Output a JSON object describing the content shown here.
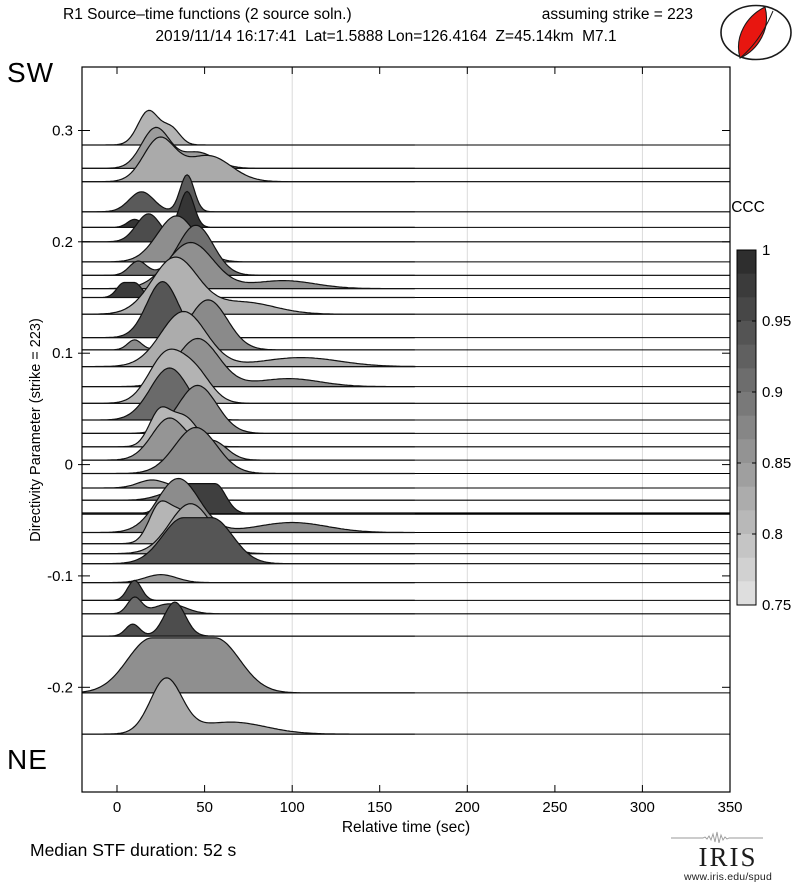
{
  "header": {
    "title_left": "R1 Source–time functions (2 source soln.)",
    "title_right": "assuming strike = 223",
    "subtitle": "2019/11/14 16:17:41  Lat=1.5888 Lon=126.4164  Z=45.14km  M7.1"
  },
  "corner_labels": {
    "top": "SW",
    "bottom": "NE"
  },
  "footer": {
    "median_text": "Median STF duration: 52 s",
    "logo_text": "IRIS",
    "logo_url": "www.iris.edu/spud"
  },
  "beachball": {
    "fill": "#e81610",
    "stroke": "#1a1a1a"
  },
  "chart_data": {
    "type": "area",
    "title": "R1 Source–time functions (2 source soln.)   assuming strike = 223",
    "subtitle": "2019/11/14 16:17:41  Lat=1.5888 Lon=126.4164  Z=45.14km  M7.1",
    "xlabel": "Relative time (sec)",
    "ylabel": "Directivity Parameter (strike = 223)",
    "xlim": [
      -20,
      350
    ],
    "ylim": [
      -0.294,
      0.357
    ],
    "x_ticks": [
      0,
      50,
      100,
      150,
      200,
      250,
      300,
      350
    ],
    "y_ticks": [
      0.3,
      0.2,
      0.1,
      0,
      -0.1,
      -0.2
    ],
    "grid_x": [
      100,
      200,
      300
    ],
    "grid_color": "#dadada",
    "median_stf_duration_sec": 52,
    "colorbar": {
      "title": "CCC",
      "tick_values": [
        1,
        0.95,
        0.9,
        0.85,
        0.8,
        0.75
      ],
      "vmin": 0.75,
      "vmax": 1,
      "bands": 15,
      "color_dark": "#2e2e2e",
      "color_light": "#dedede"
    },
    "traces": [
      {
        "d": 0.287,
        "c": "#b4b4b4",
        "k": [
          [
            18,
            6,
            34
          ],
          [
            31,
            5,
            16
          ]
        ]
      },
      {
        "d": 0.266,
        "c": "#9c9c9c",
        "k": [
          [
            22,
            8,
            40
          ],
          [
            46,
            10,
            16
          ]
        ]
      },
      {
        "d": 0.254,
        "c": "#aaaaaa",
        "k": [
          [
            24,
            9,
            42
          ],
          [
            52,
            13,
            26
          ]
        ]
      },
      {
        "d": 0.227,
        "c": "#5a5a5a",
        "k": [
          [
            14,
            7,
            20
          ],
          [
            40,
            4,
            37
          ]
        ]
      },
      {
        "d": 0.213,
        "c": "#353535",
        "k": [
          [
            10,
            4,
            8
          ],
          [
            40,
            4,
            36
          ]
        ]
      },
      {
        "d": 0.2,
        "c": "#4c4c4c",
        "k": [
          [
            18,
            7,
            28
          ]
        ]
      },
      {
        "d": 0.182,
        "c": "#8e8e8e",
        "k": [
          [
            34,
            11,
            46
          ]
        ]
      },
      {
        "d": 0.17,
        "c": "#6f6f6f",
        "k": [
          [
            12,
            5,
            14
          ],
          [
            45,
            10,
            50
          ]
        ]
      },
      {
        "d": 0.158,
        "c": "#909090",
        "k": [
          [
            42,
            13,
            46
          ],
          [
            95,
            18,
            8
          ]
        ]
      },
      {
        "d": 0.15,
        "c": "#3b3b3b",
        "k": [
          [
            7,
            4,
            15,
            3
          ]
        ]
      },
      {
        "d": 0.135,
        "c": "#b1b1b1",
        "k": [
          [
            33,
            13,
            56
          ],
          [
            72,
            18,
            12
          ]
        ]
      },
      {
        "d": 0.114,
        "c": "#565656",
        "k": [
          [
            26,
            9,
            56
          ]
        ]
      },
      {
        "d": 0.103,
        "c": "#8a8a8a",
        "k": [
          [
            10,
            4,
            10
          ],
          [
            52,
            11,
            50
          ]
        ]
      },
      {
        "d": 0.088,
        "c": "#acacac",
        "k": [
          [
            38,
            13,
            55
          ],
          [
            105,
            22,
            9
          ]
        ]
      },
      {
        "d": 0.07,
        "c": "#919191",
        "k": [
          [
            46,
            12,
            48
          ],
          [
            98,
            18,
            8
          ]
        ]
      },
      {
        "d": 0.055,
        "c": "#b3b3b3",
        "k": [
          [
            28,
            10,
            48
          ],
          [
            45,
            9,
            28
          ]
        ]
      },
      {
        "d": 0.04,
        "c": "#6a6a6a",
        "k": [
          [
            30,
            11,
            52
          ]
        ]
      },
      {
        "d": 0.028,
        "c": "#8d8d8d",
        "k": [
          [
            46,
            11,
            48
          ]
        ]
      },
      {
        "d": 0.016,
        "c": "#b6b6b6",
        "k": [
          [
            24,
            6,
            32
          ],
          [
            38,
            8,
            30
          ]
        ]
      },
      {
        "d": 0.004,
        "c": "#959595",
        "k": [
          [
            30,
            10,
            42
          ],
          [
            55,
            8,
            18
          ]
        ]
      },
      {
        "d": -0.008,
        "c": "#8a8a8a",
        "k": [
          [
            45,
            12,
            46
          ]
        ]
      },
      {
        "d": -0.021,
        "c": "#a0a0a0",
        "k": [
          [
            20,
            8,
            8
          ]
        ]
      },
      {
        "d": -0.032,
        "c": "#787878",
        "k": [
          [
            35,
            10,
            10
          ]
        ]
      },
      {
        "d": -0.044,
        "c": "#3f3f3f",
        "k": [
          [
            44,
            6,
            30,
            12
          ]
        ],
        "thick": true
      },
      {
        "d": -0.061,
        "c": "#8c8c8c",
        "k": [
          [
            35,
            12,
            54
          ],
          [
            100,
            20,
            10
          ]
        ]
      },
      {
        "d": -0.071,
        "c": "#b5b5b5",
        "k": [
          [
            24,
            6,
            36
          ],
          [
            37,
            7,
            30
          ]
        ]
      },
      {
        "d": -0.08,
        "c": "#a5a5a5",
        "k": [
          [
            42,
            12,
            50
          ]
        ]
      },
      {
        "d": -0.089,
        "c": "#555555",
        "k": [
          [
            46,
            12,
            46,
            8
          ]
        ]
      },
      {
        "d": -0.106,
        "c": "#9a9a9a",
        "k": [
          [
            25,
            9,
            8
          ]
        ]
      },
      {
        "d": -0.122,
        "c": "#4f4f4f",
        "k": [
          [
            10,
            4,
            20
          ]
        ]
      },
      {
        "d": -0.134,
        "c": "#6b6b6b",
        "k": [
          [
            10,
            4,
            16
          ],
          [
            30,
            9,
            10
          ]
        ]
      },
      {
        "d": -0.154,
        "c": "#4d4d4d",
        "k": [
          [
            9,
            4,
            12
          ],
          [
            33,
            6,
            34
          ]
        ]
      },
      {
        "d": -0.205,
        "c": "#8f8f8f",
        "k": [
          [
            38,
            14,
            55,
            18
          ]
        ]
      },
      {
        "d": -0.242,
        "c": "#a9a9a9",
        "k": [
          [
            28,
            9,
            54
          ],
          [
            65,
            20,
            12
          ]
        ]
      }
    ]
  }
}
